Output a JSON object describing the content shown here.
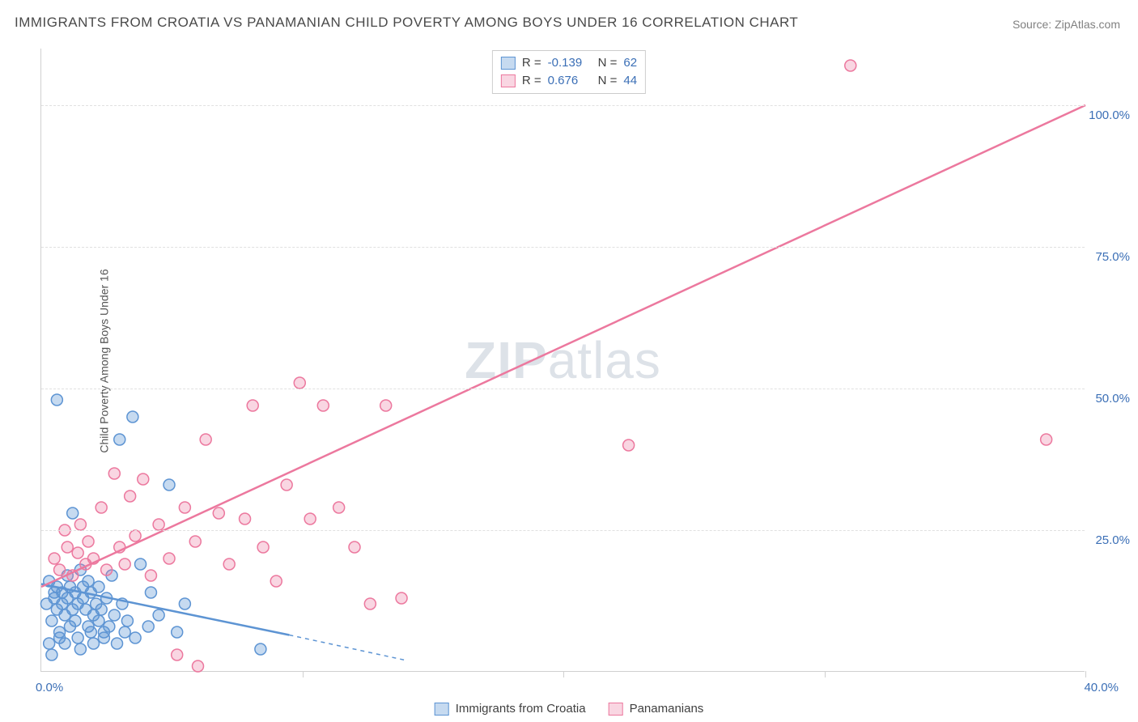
{
  "title": "IMMIGRANTS FROM CROATIA VS PANAMANIAN CHILD POVERTY AMONG BOYS UNDER 16 CORRELATION CHART",
  "source": "Source: ZipAtlas.com",
  "watermark_bold": "ZIP",
  "watermark_light": "atlas",
  "y_axis_label": "Child Poverty Among Boys Under 16",
  "chart": {
    "type": "scatter",
    "background_color": "#ffffff",
    "grid_color": "#e0e0e0",
    "axis_color": "#d0d0d0",
    "title_fontsize": 17,
    "label_fontsize": 14,
    "tick_fontsize": 15,
    "tick_color": "#3b6fb6",
    "marker_radius": 7,
    "marker_stroke_width": 1.5,
    "line_width": 2.5,
    "xlim": [
      0,
      40
    ],
    "ylim": [
      0,
      110
    ],
    "y_ticks": [
      {
        "v": 25,
        "label": "25.0%"
      },
      {
        "v": 50,
        "label": "50.0%"
      },
      {
        "v": 75,
        "label": "75.0%"
      },
      {
        "v": 100,
        "label": "100.0%"
      }
    ],
    "x_tick_positions": [
      10,
      20,
      30,
      40
    ],
    "x_origin_label": "0.0%",
    "x_end_label": "40.0%",
    "series": [
      {
        "name": "Immigrants from Croatia",
        "color_fill": "rgba(93,148,211,0.35)",
        "color_stroke": "#5d94d3",
        "R_label": "R =",
        "R": "-0.139",
        "N_label": "N =",
        "N": "62",
        "trend": {
          "x1": 0,
          "y1": 15.5,
          "x2": 9.5,
          "y2": 6.5,
          "dash_x2": 14,
          "dash_y2": 2
        },
        "points": [
          [
            0.2,
            12
          ],
          [
            0.3,
            5
          ],
          [
            0.3,
            16
          ],
          [
            0.4,
            3
          ],
          [
            0.4,
            9
          ],
          [
            0.5,
            14
          ],
          [
            0.5,
            13
          ],
          [
            0.6,
            15
          ],
          [
            0.6,
            11
          ],
          [
            0.7,
            7
          ],
          [
            0.7,
            6
          ],
          [
            0.8,
            12
          ],
          [
            0.8,
            14
          ],
          [
            0.9,
            5
          ],
          [
            0.9,
            10
          ],
          [
            1.0,
            13
          ],
          [
            1.0,
            17
          ],
          [
            1.1,
            8
          ],
          [
            1.1,
            15
          ],
          [
            1.2,
            11
          ],
          [
            1.2,
            28
          ],
          [
            1.3,
            9
          ],
          [
            1.3,
            14
          ],
          [
            1.4,
            12
          ],
          [
            1.4,
            6
          ],
          [
            1.5,
            18
          ],
          [
            1.5,
            4
          ],
          [
            1.6,
            15
          ],
          [
            1.6,
            13
          ],
          [
            1.7,
            11
          ],
          [
            1.8,
            8
          ],
          [
            1.8,
            16
          ],
          [
            1.9,
            7
          ],
          [
            1.9,
            14
          ],
          [
            2.0,
            10
          ],
          [
            2.0,
            5
          ],
          [
            2.1,
            12
          ],
          [
            2.2,
            9
          ],
          [
            2.2,
            15
          ],
          [
            2.3,
            11
          ],
          [
            2.4,
            7
          ],
          [
            2.4,
            6
          ],
          [
            2.5,
            13
          ],
          [
            2.6,
            8
          ],
          [
            2.7,
            17
          ],
          [
            2.8,
            10
          ],
          [
            2.9,
            5
          ],
          [
            3.0,
            41
          ],
          [
            3.1,
            12
          ],
          [
            3.2,
            7
          ],
          [
            3.3,
            9
          ],
          [
            3.5,
            45
          ],
          [
            3.6,
            6
          ],
          [
            3.8,
            19
          ],
          [
            4.1,
            8
          ],
          [
            4.2,
            14
          ],
          [
            4.5,
            10
          ],
          [
            4.9,
            33
          ],
          [
            5.2,
            7
          ],
          [
            5.5,
            12
          ],
          [
            8.4,
            4
          ],
          [
            0.6,
            48
          ]
        ]
      },
      {
        "name": "Panamanians",
        "color_fill": "rgba(236,120,158,0.30)",
        "color_stroke": "#ec789e",
        "R_label": "R =",
        "R": "0.676",
        "N_label": "N =",
        "N": "44",
        "trend": {
          "x1": 0,
          "y1": 15,
          "x2": 40,
          "y2": 100
        },
        "points": [
          [
            0.5,
            20
          ],
          [
            0.7,
            18
          ],
          [
            0.9,
            25
          ],
          [
            1.0,
            22
          ],
          [
            1.2,
            17
          ],
          [
            1.4,
            21
          ],
          [
            1.5,
            26
          ],
          [
            1.7,
            19
          ],
          [
            1.8,
            23
          ],
          [
            2.0,
            20
          ],
          [
            2.3,
            29
          ],
          [
            2.5,
            18
          ],
          [
            2.8,
            35
          ],
          [
            3.0,
            22
          ],
          [
            3.2,
            19
          ],
          [
            3.4,
            31
          ],
          [
            3.6,
            24
          ],
          [
            3.9,
            34
          ],
          [
            4.2,
            17
          ],
          [
            4.5,
            26
          ],
          [
            4.9,
            20
          ],
          [
            5.2,
            3
          ],
          [
            5.5,
            29
          ],
          [
            5.9,
            23
          ],
          [
            6.3,
            41
          ],
          [
            6.8,
            28
          ],
          [
            7.2,
            19
          ],
          [
            7.8,
            27
          ],
          [
            8.1,
            47
          ],
          [
            8.5,
            22
          ],
          [
            9.0,
            16
          ],
          [
            9.4,
            33
          ],
          [
            9.9,
            51
          ],
          [
            10.3,
            27
          ],
          [
            10.8,
            47
          ],
          [
            11.4,
            29
          ],
          [
            12.0,
            22
          ],
          [
            12.6,
            12
          ],
          [
            13.2,
            47
          ],
          [
            13.8,
            13
          ],
          [
            22.5,
            40
          ],
          [
            31.0,
            107
          ],
          [
            38.5,
            41
          ],
          [
            6.0,
            1
          ]
        ]
      }
    ]
  },
  "legend_bottom": [
    {
      "label": "Immigrants from Croatia",
      "fill": "rgba(93,148,211,0.35)",
      "stroke": "#5d94d3"
    },
    {
      "label": "Panamanians",
      "fill": "rgba(236,120,158,0.30)",
      "stroke": "#ec789e"
    }
  ]
}
